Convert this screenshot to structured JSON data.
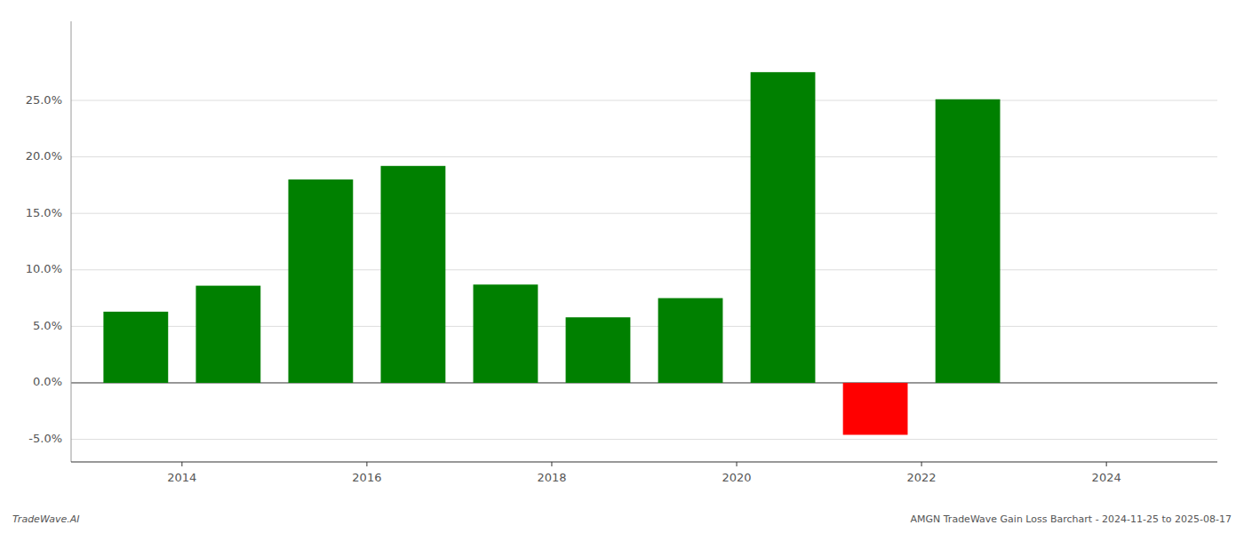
{
  "chart_data": {
    "type": "bar",
    "x": [
      2013.5,
      2014.5,
      2015.5,
      2016.5,
      2017.5,
      2018.5,
      2019.5,
      2020.5,
      2021.5,
      2022.5
    ],
    "values": [
      0.063,
      0.086,
      0.18,
      0.192,
      0.087,
      0.058,
      0.075,
      0.275,
      -0.046,
      0.251
    ],
    "colors": [
      "#008000",
      "#008000",
      "#008000",
      "#008000",
      "#008000",
      "#008000",
      "#008000",
      "#008000",
      "#ff0000",
      "#008000"
    ],
    "ylim": [
      -0.07,
      0.32
    ],
    "yticks": [
      {
        "value": -0.05,
        "label": "-5.0%"
      },
      {
        "value": 0.0,
        "label": "0.0%"
      },
      {
        "value": 0.05,
        "label": "5.0%"
      },
      {
        "value": 0.1,
        "label": "10.0%"
      },
      {
        "value": 0.15,
        "label": "15.0%"
      },
      {
        "value": 0.2,
        "label": "20.0%"
      },
      {
        "value": 0.25,
        "label": "25.0%"
      }
    ],
    "xlim": [
      2012.8,
      2025.2
    ],
    "xticks": [
      2014,
      2016,
      2018,
      2020,
      2022,
      2024
    ],
    "annotations": [
      "TradeWave.AI",
      "AMGN TradeWave Gain Loss Barchart - 2024-11-25 to 2025-08-17"
    ],
    "grid": true
  }
}
